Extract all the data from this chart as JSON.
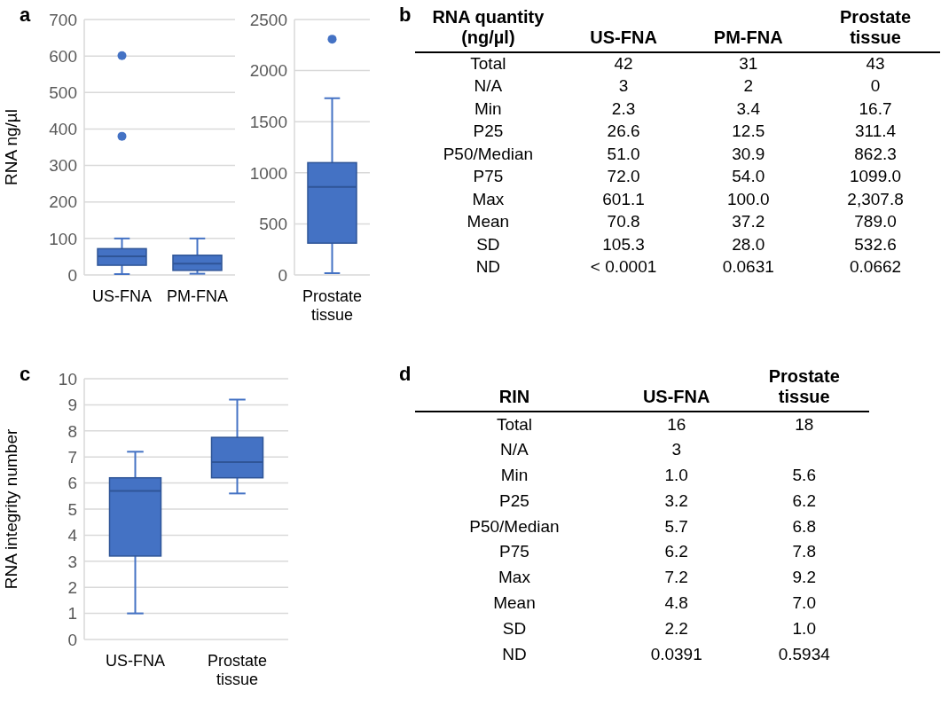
{
  "chart_data": [
    {
      "type": "box",
      "title": "a",
      "ylabel": "RNA ng/µl",
      "categories": [
        "US-FNA",
        "PM-FNA"
      ],
      "color": "#4472c4",
      "ylim": [
        0,
        700
      ],
      "yticks": [
        0,
        100,
        200,
        300,
        400,
        500,
        600,
        700
      ],
      "grid": "y",
      "boxes": [
        {
          "low": 2.3,
          "q1": 26.6,
          "median": 51.0,
          "q3": 72.0,
          "high": 100,
          "outliers": [
            380,
            601.1
          ]
        },
        {
          "low": 3.4,
          "q1": 12.5,
          "median": 30.9,
          "q3": 54.0,
          "high": 100.0
        }
      ]
    },
    {
      "type": "box",
      "categories": [
        "Prostate tissue"
      ],
      "color": "#4472c4",
      "ylim": [
        0,
        2500
      ],
      "yticks": [
        0,
        500,
        1000,
        1500,
        2000,
        2500
      ],
      "grid": "y",
      "boxes": [
        {
          "low": 16.7,
          "q1": 311.4,
          "median": 862.3,
          "q3": 1099.0,
          "high": 1730,
          "outliers": [
            2307.8
          ]
        }
      ]
    },
    {
      "type": "other",
      "title": "b",
      "categories": [
        "RNA quantity (ng/µl)",
        "US-FNA",
        "PM-FNA",
        "Prostate tissue"
      ],
      "cell_labels": [
        [
          "Total",
          "42",
          "31",
          "43"
        ],
        [
          "N/A",
          "3",
          "2",
          "0"
        ],
        [
          "Min",
          "2.3",
          "3.4",
          "16.7"
        ],
        [
          "P25",
          "26.6",
          "12.5",
          "311.4"
        ],
        [
          "P50/Median",
          "51.0",
          "30.9",
          "862.3"
        ],
        [
          "P75",
          "72.0",
          "54.0",
          "1099.0"
        ],
        [
          "Max",
          "601.1",
          "100.0",
          "2,307.8"
        ],
        [
          "Mean",
          "70.8",
          "37.2",
          "789.0"
        ],
        [
          "SD",
          "105.3",
          "28.0",
          "532.6"
        ],
        [
          "ND",
          "< 0.0001",
          "0.0631",
          "0.0662"
        ]
      ]
    },
    {
      "type": "box",
      "title": "c",
      "ylabel": "RNA integrity number",
      "categories": [
        "US-FNA",
        "Prostate tissue"
      ],
      "color": "#4472c4",
      "ylim": [
        0,
        10
      ],
      "yticks": [
        0,
        1,
        2,
        3,
        4,
        5,
        6,
        7,
        8,
        9,
        10
      ],
      "grid": "y",
      "boxes": [
        {
          "low": 1.0,
          "q1": 3.2,
          "median": 5.7,
          "q3": 6.2,
          "high": 7.2
        },
        {
          "low": 5.6,
          "q1": 6.2,
          "median": 6.8,
          "q3": 7.75,
          "high": 9.2
        }
      ]
    },
    {
      "type": "other",
      "title": "d",
      "categories": [
        "RIN",
        "US-FNA",
        "Prostate tissue"
      ],
      "cell_labels": [
        [
          "Total",
          "16",
          "18"
        ],
        [
          "N/A",
          "3",
          null
        ],
        [
          "Min",
          "1.0",
          "5.6"
        ],
        [
          "P25",
          "3.2",
          "6.2"
        ],
        [
          "P50/Median",
          "5.7",
          "6.8"
        ],
        [
          "P75",
          "6.2",
          "7.8"
        ],
        [
          "Max",
          "7.2",
          "9.2"
        ],
        [
          "Mean",
          "4.8",
          "7.0"
        ],
        [
          "SD",
          "2.2",
          "1.0"
        ],
        [
          "ND",
          "0.0391",
          "0.5934"
        ]
      ]
    }
  ]
}
